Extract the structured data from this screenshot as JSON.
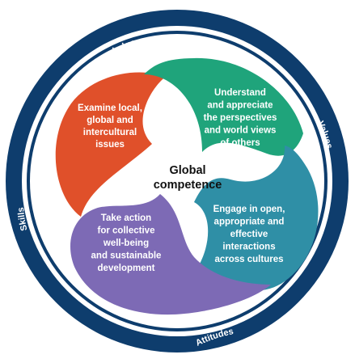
{
  "diagram": {
    "ring_labels": {
      "top": "Knowledge",
      "right": "Values",
      "bottom": "Attitudes",
      "left": "Skills"
    },
    "center": {
      "line1": "Global",
      "line2": "competence"
    },
    "dimensions": [
      {
        "lines": [
          "Examine local,",
          "global and",
          "intercultural",
          "issues"
        ],
        "color": "#e0502a"
      },
      {
        "lines": [
          "Understand",
          "and appreciate",
          "the perspectives",
          "and world views",
          "of others"
        ],
        "color": "#1fa47b"
      },
      {
        "lines": [
          "Engage in open,",
          "appropriate and",
          "effective",
          "interactions",
          "across cultures"
        ],
        "color": "#2f8fa6"
      },
      {
        "lines": [
          "Take action",
          "for collective",
          "well-being",
          "and sustainable",
          "development"
        ],
        "color": "#7d6ab5"
      }
    ],
    "colors": {
      "ring": "#0e3d6d",
      "inner_background": "#ffffff"
    }
  }
}
